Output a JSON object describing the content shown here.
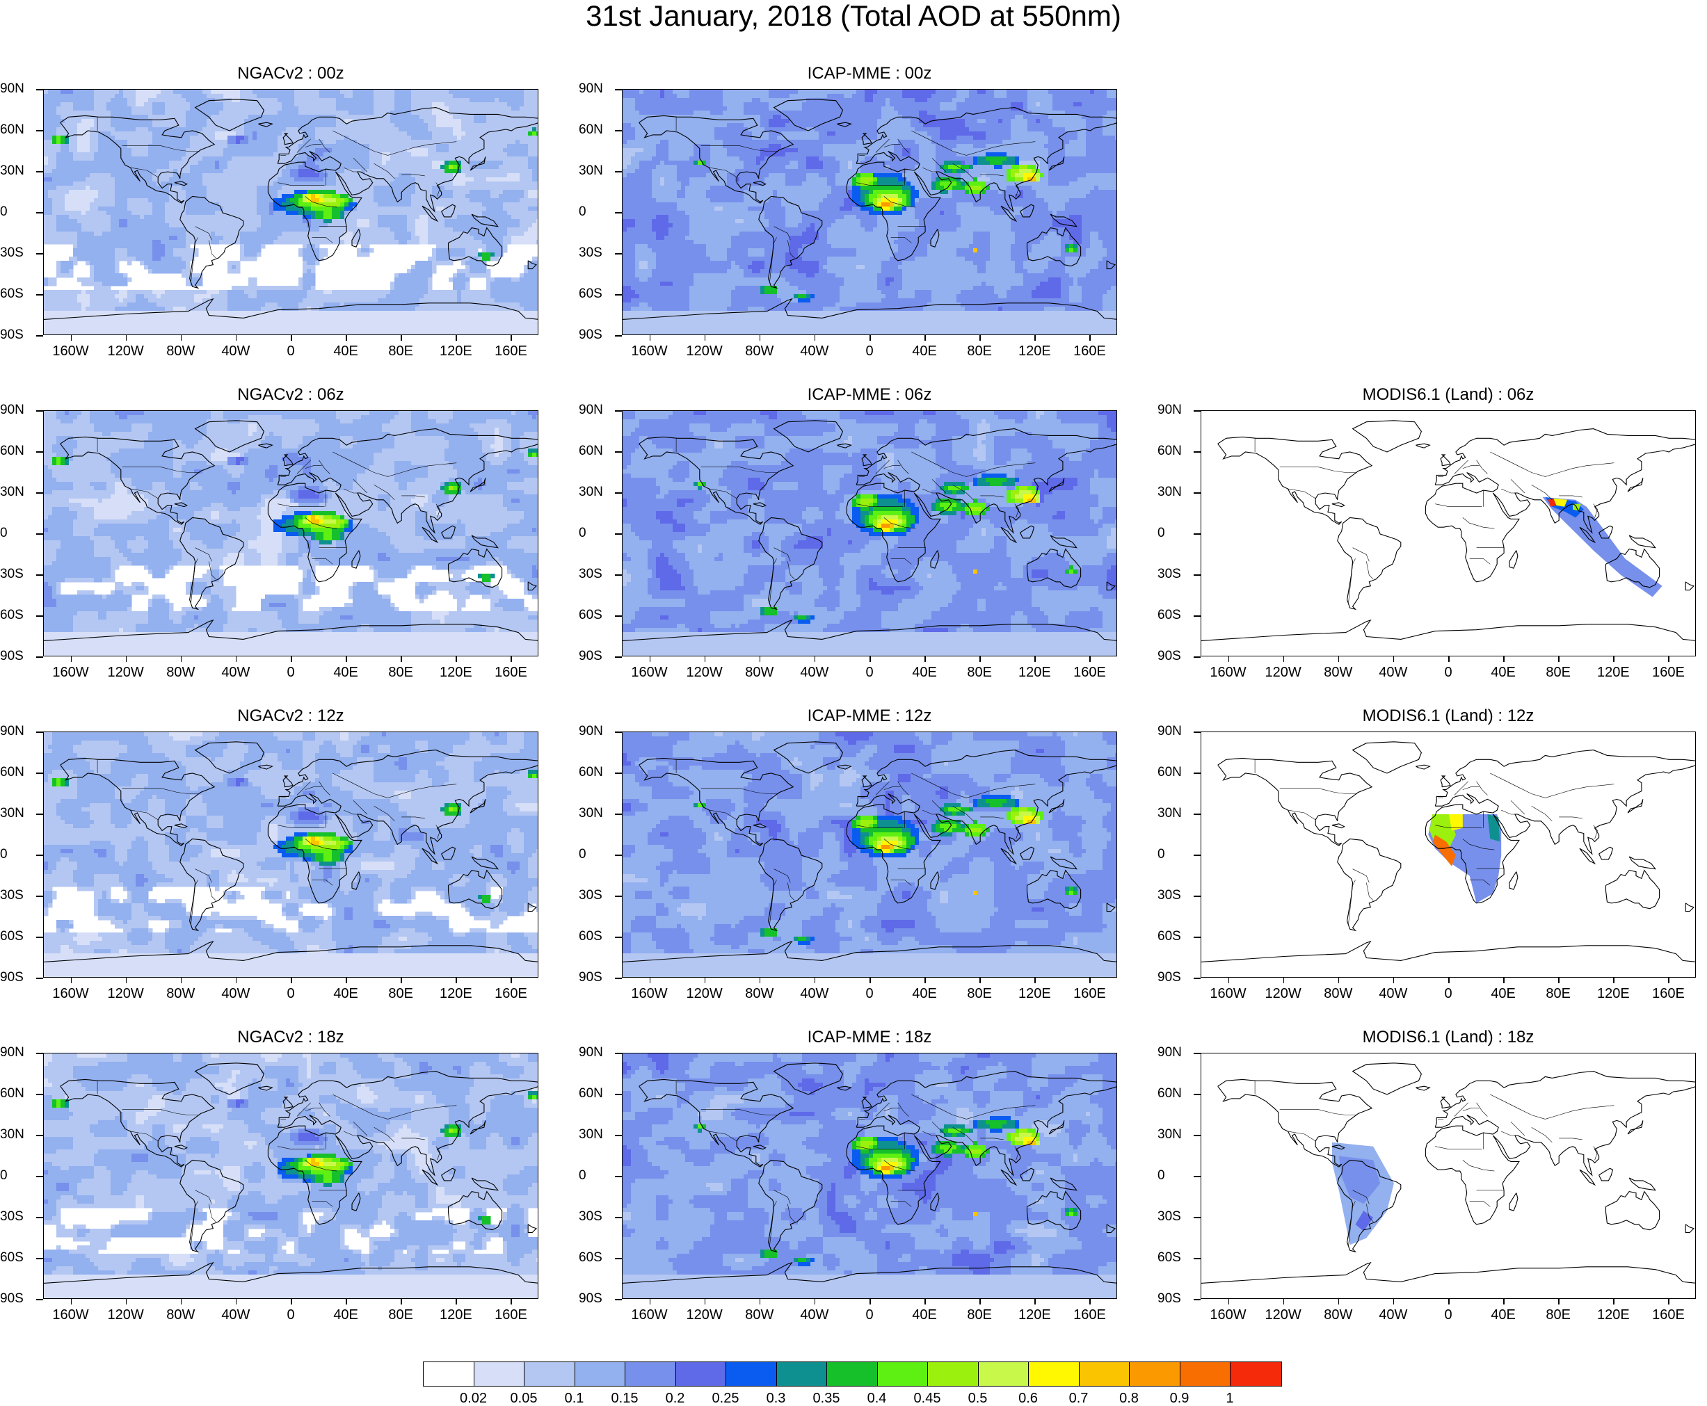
{
  "title": "31st January, 2018 (Total AOD at 550nm)",
  "lat_labels": [
    "90N",
    "60N",
    "30N",
    "0",
    "30S",
    "60S",
    "90S"
  ],
  "lon_labels": [
    "160W",
    "120W",
    "80W",
    "40W",
    "0",
    "40E",
    "80E",
    "120E",
    "160E"
  ],
  "panels": [
    {
      "title": "NGACv2 : 00z",
      "model": "ngac",
      "row": 0,
      "col": 0
    },
    {
      "title": "ICAP-MME : 00z",
      "model": "icap",
      "row": 0,
      "col": 1
    },
    {
      "title": "NGACv2 : 06z",
      "model": "ngac",
      "row": 1,
      "col": 0
    },
    {
      "title": "ICAP-MME : 06z",
      "model": "icap",
      "row": 1,
      "col": 1
    },
    {
      "title": "MODIS6.1 (Land) : 06z",
      "model": "modis06",
      "row": 1,
      "col": 2
    },
    {
      "title": "NGACv2 : 12z",
      "model": "ngac",
      "row": 2,
      "col": 0
    },
    {
      "title": "ICAP-MME : 12z",
      "model": "icap",
      "row": 2,
      "col": 1
    },
    {
      "title": "MODIS6.1 (Land) : 12z",
      "model": "modis12",
      "row": 2,
      "col": 2
    },
    {
      "title": "NGACv2 : 18z",
      "model": "ngac",
      "row": 3,
      "col": 0
    },
    {
      "title": "ICAP-MME : 18z",
      "model": "icap",
      "row": 3,
      "col": 1
    },
    {
      "title": "MODIS6.1 (Land) : 18z",
      "model": "modis18",
      "row": 3,
      "col": 2
    }
  ],
  "colorbar": {
    "labels": [
      "0.02",
      "0.05",
      "0.1",
      "0.15",
      "0.2",
      "0.25",
      "0.3",
      "0.35",
      "0.4",
      "0.45",
      "0.5",
      "0.6",
      "0.7",
      "0.8",
      "0.9",
      "1"
    ],
    "colors": [
      "#ffffff",
      "#d6dff7",
      "#b4c7f2",
      "#93b0ef",
      "#7790ec",
      "#5f6ae8",
      "#0a5cf0",
      "#0f9090",
      "#16c02a",
      "#5ef012",
      "#9cf00e",
      "#c8f84a",
      "#fff800",
      "#fbc400",
      "#fa9a00",
      "#f86e00",
      "#f42a0a"
    ]
  }
}
